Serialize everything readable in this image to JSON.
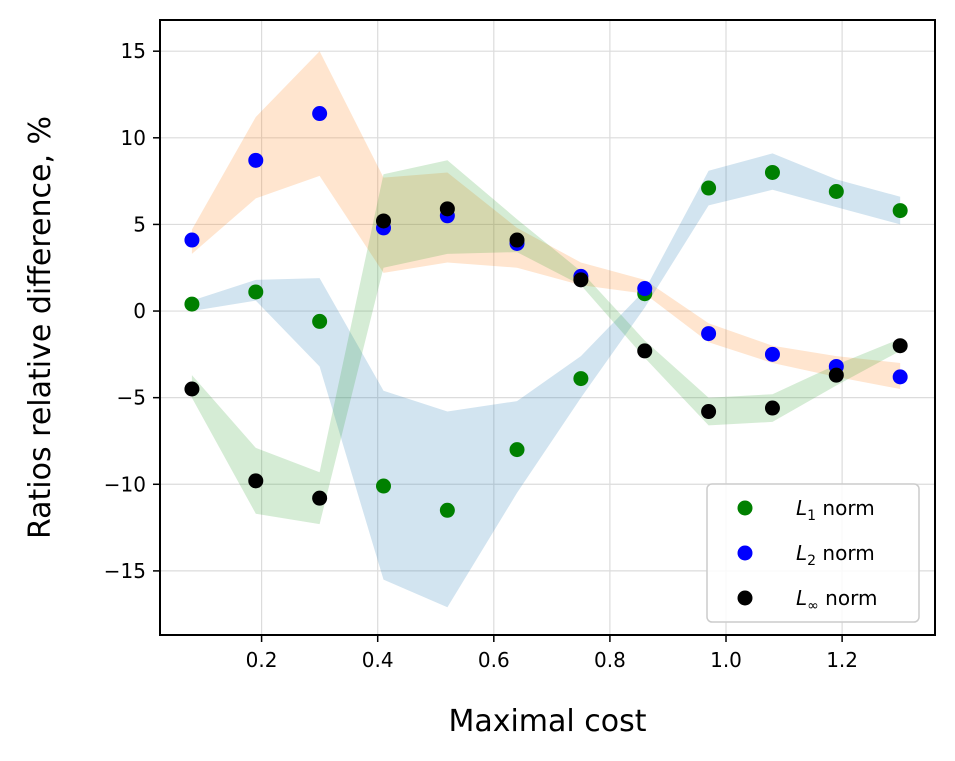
{
  "chart_data": {
    "type": "scatter",
    "title": "",
    "xlabel": "Maximal cost",
    "ylabel": "Ratios relative difference, %",
    "xlim": [
      0.025,
      1.36
    ],
    "ylim": [
      -18.7,
      16.8
    ],
    "xticks": [
      0.2,
      0.4,
      0.6,
      0.8,
      1.0,
      1.2
    ],
    "xtick_labels": [
      "0.2",
      "0.4",
      "0.6",
      "0.8",
      "1.0",
      "1.2"
    ],
    "yticks": [
      15,
      10,
      5,
      0,
      -5,
      -10,
      -15
    ],
    "ytick_labels": [
      "15",
      "10",
      "5",
      "0",
      "−5",
      "−10",
      "−15"
    ],
    "grid": true,
    "legend_position": "bottom-right",
    "x": [
      0.08,
      0.19,
      0.3,
      0.41,
      0.52,
      0.64,
      0.75,
      0.86,
      0.97,
      1.08,
      1.19,
      1.3
    ],
    "series": [
      {
        "name": "L1 norm",
        "label_main": "L",
        "label_sub": "1",
        "label_rest": " norm",
        "color": "#008000",
        "values": [
          0.4,
          1.1,
          -0.6,
          -10.1,
          -11.5,
          -8.0,
          -3.9,
          1.0,
          7.1,
          8.0,
          6.9,
          5.8
        ]
      },
      {
        "name": "L2 norm",
        "label_main": "L",
        "label_sub": "2",
        "label_rest": " norm",
        "color": "#0000ff",
        "values": [
          4.1,
          8.7,
          11.4,
          4.8,
          5.5,
          3.9,
          2.0,
          1.3,
          -1.3,
          -2.5,
          -3.2,
          -3.8
        ]
      },
      {
        "name": "L∞ norm",
        "label_main": "L",
        "label_sub": "∞",
        "label_rest": " norm",
        "color": "#000000",
        "values": [
          -4.5,
          -9.8,
          -10.8,
          5.2,
          5.9,
          4.1,
          1.8,
          -2.3,
          -5.8,
          -5.6,
          -3.7,
          -2.0
        ]
      }
    ],
    "bands": [
      {
        "color": "#ff7f0e",
        "opacity": 0.2,
        "x": [
          0.08,
          0.19,
          0.3,
          0.41,
          0.52,
          0.64,
          0.75,
          0.86,
          0.97,
          1.08,
          1.19,
          1.3
        ],
        "upper": [
          4.7,
          11.2,
          15.0,
          7.7,
          8.0,
          4.8,
          2.8,
          1.8,
          -0.7,
          -2.0,
          -2.6,
          -3.0
        ],
        "lower": [
          3.3,
          6.5,
          7.8,
          2.2,
          2.8,
          2.5,
          1.5,
          1.0,
          -1.8,
          -3.0,
          -3.8,
          -4.5
        ]
      },
      {
        "color": "#1f77b4",
        "opacity": 0.2,
        "x": [
          0.08,
          0.19,
          0.3,
          0.41,
          0.52,
          0.64,
          0.75,
          0.86,
          0.97,
          1.08,
          1.19,
          1.3
        ],
        "upper": [
          0.6,
          1.8,
          1.9,
          -4.6,
          -5.8,
          -5.2,
          -2.6,
          1.2,
          8.1,
          9.1,
          7.6,
          6.6
        ],
        "lower": [
          0.0,
          0.6,
          -3.2,
          -15.5,
          -17.1,
          -10.5,
          -5.0,
          0.2,
          6.1,
          7.0,
          6.0,
          5.0
        ]
      },
      {
        "color": "#2ca02c",
        "opacity": 0.2,
        "x": [
          0.08,
          0.19,
          0.3,
          0.41,
          0.52,
          0.64,
          0.75,
          0.86,
          0.97,
          1.08,
          1.19,
          1.3
        ],
        "upper": [
          -3.7,
          -7.9,
          -9.3,
          7.9,
          8.7,
          5.3,
          2.3,
          -1.7,
          -5.0,
          -4.8,
          -3.1,
          -1.6
        ],
        "lower": [
          -5.0,
          -11.7,
          -12.3,
          2.5,
          3.3,
          3.4,
          1.5,
          -2.7,
          -6.6,
          -6.4,
          -4.3,
          -2.3
        ]
      }
    ]
  }
}
